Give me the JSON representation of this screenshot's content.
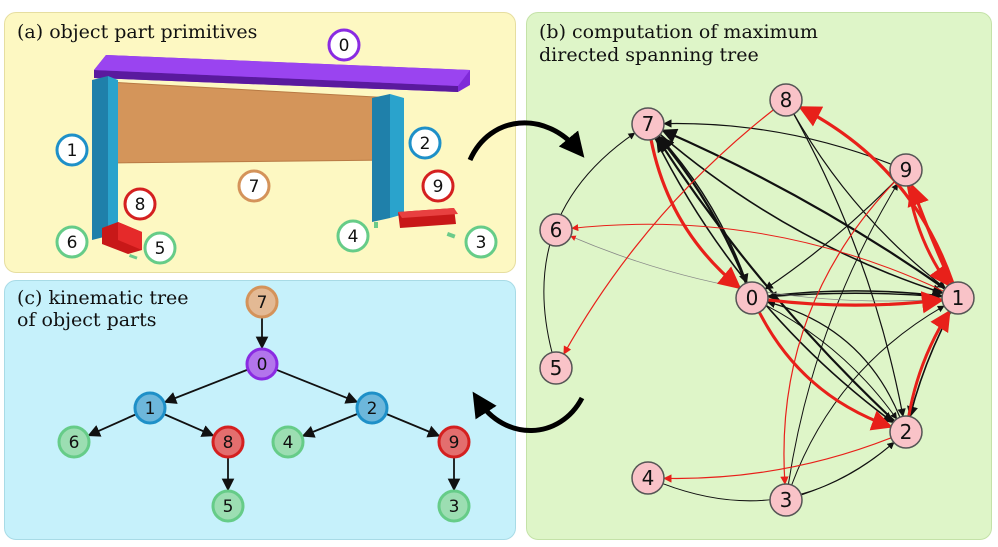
{
  "panel_a": {
    "title": "(a) object part primitives"
  },
  "panel_b": {
    "title_line1": "(b) computation of maximum",
    "title_line2": "directed spanning tree"
  },
  "panel_c": {
    "title_line1": "(c) kinematic tree",
    "title_line2": "of object parts"
  },
  "parts": [
    {
      "id": "0",
      "color": "#8a2be2"
    },
    {
      "id": "1",
      "color": "#1e90c8"
    },
    {
      "id": "2",
      "color": "#1e90c8"
    },
    {
      "id": "3",
      "color": "#66cc88"
    },
    {
      "id": "4",
      "color": "#66cc88"
    },
    {
      "id": "5",
      "color": "#66cc88"
    },
    {
      "id": "6",
      "color": "#66cc88"
    },
    {
      "id": "7",
      "color": "#d4935a"
    },
    {
      "id": "8",
      "color": "#d42020"
    },
    {
      "id": "9",
      "color": "#d42020"
    }
  ],
  "tree_edges": [
    {
      "from": "7",
      "to": "0"
    },
    {
      "from": "0",
      "to": "1"
    },
    {
      "from": "0",
      "to": "2"
    },
    {
      "from": "1",
      "to": "6"
    },
    {
      "from": "1",
      "to": "8"
    },
    {
      "from": "8",
      "to": "5"
    },
    {
      "from": "2",
      "to": "4"
    },
    {
      "from": "2",
      "to": "9"
    },
    {
      "from": "9",
      "to": "3"
    }
  ],
  "graph": {
    "node_fill": "#f9c3c8",
    "node_stroke": "#555555",
    "highlight_color": "#e8201a"
  }
}
